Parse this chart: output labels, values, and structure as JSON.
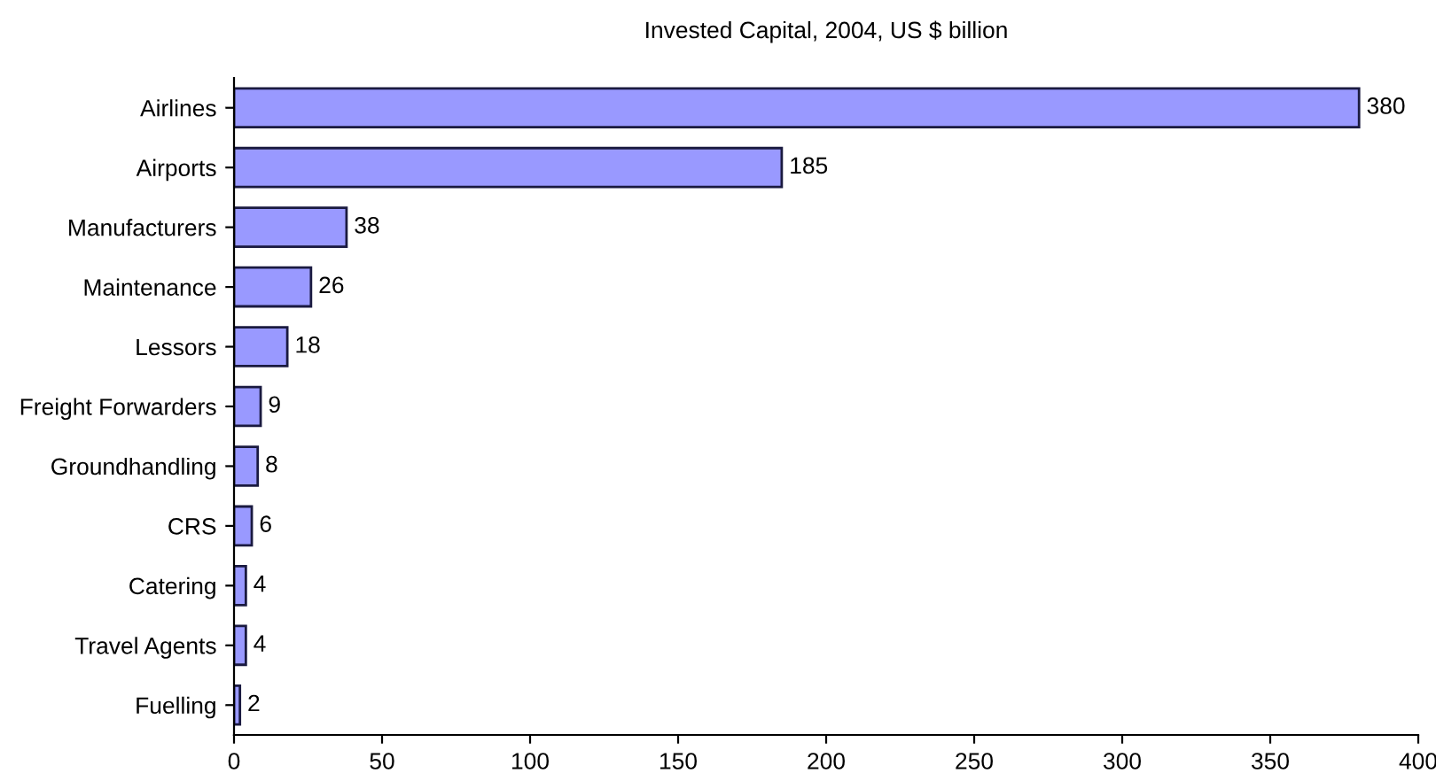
{
  "chart_data": {
    "type": "bar",
    "orientation": "horizontal",
    "title": "Invested Capital, 2004, US $ billion",
    "categories": [
      "Airlines",
      "Airports",
      "Manufacturers",
      "Maintenance",
      "Lessors",
      "Freight Forwarders",
      "Groundhandling",
      "CRS",
      "Catering",
      "Travel Agents",
      "Fuelling"
    ],
    "values": [
      380,
      185,
      38,
      26,
      18,
      9,
      8,
      6,
      4,
      4,
      2
    ],
    "color": "#9999ff",
    "xlim": [
      0,
      400
    ],
    "xticks": [
      0,
      50,
      100,
      150,
      200,
      250,
      300,
      350,
      400
    ],
    "data_labels": true
  }
}
